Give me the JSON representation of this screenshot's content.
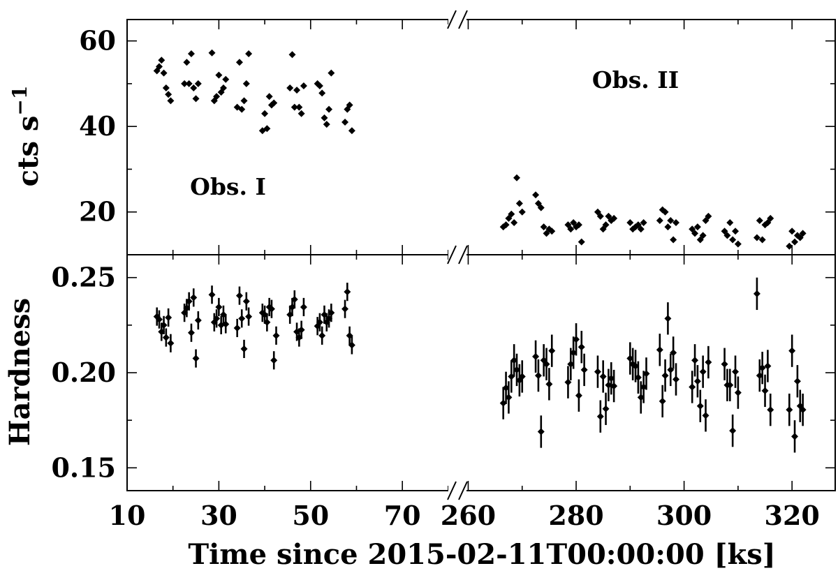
{
  "chart_data": {
    "type": "scatter",
    "xlabel": "Time since 2015-02-11T00:00:00 [ks]",
    "x_axis": {
      "broken": true,
      "segments": [
        {
          "range": [
            10,
            82
          ],
          "ticks": [
            10,
            30,
            50,
            70
          ]
        },
        {
          "range": [
            258,
            328
          ],
          "ticks": [
            260,
            280,
            300,
            320
          ]
        }
      ]
    },
    "panels": [
      {
        "id": "rate",
        "ylabel": "cts s",
        "ylabel_superscript": "−1",
        "ylim": [
          10,
          65
        ],
        "yticks": [
          20,
          40,
          60
        ],
        "annotations": [
          {
            "text": "Obs. I",
            "x": 32,
            "y": 24
          },
          {
            "text": "Obs. II",
            "x": 291,
            "y": 49
          }
        ],
        "series": [
          {
            "points": [
              [
                16.5,
                53
              ],
              [
                17,
                54
              ],
              [
                17.5,
                55.5
              ],
              [
                18,
                52.5
              ],
              [
                18.5,
                49
              ],
              [
                19,
                47.5
              ],
              [
                19.5,
                46
              ],
              [
                22.5,
                50
              ],
              [
                23,
                55
              ],
              [
                23.5,
                50
              ],
              [
                24,
                57
              ],
              [
                24.5,
                49
              ],
              [
                25,
                46.5
              ],
              [
                25.5,
                50
              ],
              [
                28.5,
                57.2
              ],
              [
                29,
                46
              ],
              [
                29.5,
                47
              ],
              [
                30,
                52
              ],
              [
                30.5,
                48
              ],
              [
                31,
                49
              ],
              [
                31.5,
                51
              ],
              [
                34,
                44.5
              ],
              [
                34.5,
                55
              ],
              [
                35,
                44
              ],
              [
                35.5,
                46
              ],
              [
                36,
                50
              ],
              [
                36.5,
                57
              ],
              [
                39.5,
                39
              ],
              [
                40,
                43
              ],
              [
                40.5,
                39.5
              ],
              [
                41,
                47
              ],
              [
                41.5,
                45
              ],
              [
                42,
                45.5
              ],
              [
                45.5,
                49
              ],
              [
                46,
                56.8
              ],
              [
                46.5,
                44.5
              ],
              [
                47,
                48.5
              ],
              [
                47.5,
                44.5
              ],
              [
                48,
                43
              ],
              [
                48.5,
                49.5
              ],
              [
                51.5,
                50
              ],
              [
                52,
                49.5
              ],
              [
                52.5,
                47.8
              ],
              [
                53,
                42
              ],
              [
                53.5,
                40.5
              ],
              [
                54,
                44
              ],
              [
                54.5,
                52.5
              ],
              [
                57.5,
                41
              ],
              [
                58,
                44
              ],
              [
                58.5,
                45
              ],
              [
                59,
                39
              ]
            ]
          },
          {
            "points": [
              [
                266.5,
                16.5
              ],
              [
                267,
                17
              ],
              [
                267.5,
                18.5
              ],
              [
                268,
                19.5
              ],
              [
                268.5,
                17.5
              ],
              [
                269,
                28
              ],
              [
                269.5,
                22
              ],
              [
                270,
                20
              ],
              [
                272.5,
                24
              ],
              [
                273,
                22
              ],
              [
                273.5,
                21
              ],
              [
                274,
                16.5
              ],
              [
                274.5,
                15
              ],
              [
                275,
                16
              ],
              [
                275.5,
                15.5
              ],
              [
                278.5,
                17
              ],
              [
                279,
                16
              ],
              [
                279.5,
                17.5
              ],
              [
                280,
                16.5
              ],
              [
                280.5,
                17
              ],
              [
                281,
                13
              ],
              [
                284,
                20
              ],
              [
                284.5,
                19
              ],
              [
                285,
                16
              ],
              [
                285.5,
                17
              ],
              [
                286,
                19
              ],
              [
                286.5,
                18
              ],
              [
                287,
                18.5
              ],
              [
                290,
                17.5
              ],
              [
                290.5,
                16
              ],
              [
                291,
                16.5
              ],
              [
                291.5,
                17
              ],
              [
                292,
                16
              ],
              [
                292.5,
                17.5
              ],
              [
                295.5,
                18
              ],
              [
                296,
                20.5
              ],
              [
                296.5,
                20
              ],
              [
                297,
                16.5
              ],
              [
                297.5,
                18
              ],
              [
                298,
                13.5
              ],
              [
                298.5,
                17.5
              ],
              [
                301.5,
                16
              ],
              [
                302,
                15
              ],
              [
                302.5,
                16.5
              ],
              [
                303,
                13.5
              ],
              [
                303.5,
                14.5
              ],
              [
                304,
                18
              ],
              [
                304.5,
                19
              ],
              [
                307.5,
                15.5
              ],
              [
                308,
                14.5
              ],
              [
                308.5,
                17.5
              ],
              [
                309,
                13.5
              ],
              [
                309.5,
                15.5
              ],
              [
                310,
                12.5
              ],
              [
                313.5,
                14
              ],
              [
                314,
                18
              ],
              [
                314.5,
                13.5
              ],
              [
                315,
                17
              ],
              [
                315.5,
                17.5
              ],
              [
                316,
                18.5
              ],
              [
                319.5,
                12
              ],
              [
                320,
                15.5
              ],
              [
                320.5,
                13
              ],
              [
                321,
                14.5
              ],
              [
                321.5,
                14
              ],
              [
                322,
                15
              ]
            ]
          }
        ]
      },
      {
        "id": "hardness",
        "ylabel": "Hardness",
        "ylim": [
          0.138,
          0.262
        ],
        "yticks": [
          0.15,
          0.2,
          0.25
        ],
        "ytick_labels": [
          "0.15",
          "0.20",
          "0.25"
        ],
        "series": [
          {
            "points": [
              [
                16.5,
                0.2295
              ],
              [
                17,
                0.228
              ],
              [
                17.5,
                0.2215
              ],
              [
                18,
                0.225
              ],
              [
                18.5,
                0.2185
              ],
              [
                19,
                0.229
              ],
              [
                19.5,
                0.2155
              ],
              [
                22.5,
                0.2315
              ],
              [
                23,
                0.234
              ],
              [
                23.5,
                0.2375
              ],
              [
                24,
                0.221
              ],
              [
                24.5,
                0.2395
              ],
              [
                25,
                0.2075
              ],
              [
                25.5,
                0.2275
              ],
              [
                28.5,
                0.241
              ],
              [
                29,
                0.2265
              ],
              [
                29.5,
                0.2285
              ],
              [
                30,
                0.2345
              ],
              [
                30.5,
                0.225
              ],
              [
                31,
                0.2305
              ],
              [
                31.5,
                0.2255
              ],
              [
                34,
                0.2235
              ],
              [
                34.5,
                0.2405
              ],
              [
                35,
                0.2285
              ],
              [
                35.5,
                0.2125
              ],
              [
                36,
                0.2375
              ],
              [
                36.5,
                0.2295
              ],
              [
                39.5,
                0.2315
              ],
              [
                40,
                0.2305
              ],
              [
                40.5,
                0.2265
              ],
              [
                41,
                0.2345
              ],
              [
                41.5,
                0.2335
              ],
              [
                42,
                0.2065
              ],
              [
                42.5,
                0.2195
              ],
              [
                45.5,
                0.2305
              ],
              [
                46,
                0.2345
              ],
              [
                46.5,
                0.2385
              ],
              [
                47,
                0.2215
              ],
              [
                47.5,
                0.2185
              ],
              [
                48,
                0.2225
              ],
              [
                48.5,
                0.2345
              ],
              [
                51.5,
                0.2245
              ],
              [
                52,
                0.2265
              ],
              [
                52.5,
                0.2195
              ],
              [
                53,
                0.2305
              ],
              [
                53.5,
                0.2265
              ],
              [
                54,
                0.2285
              ],
              [
                54.5,
                0.2315
              ],
              [
                57.5,
                0.2335
              ],
              [
                58,
                0.2425
              ],
              [
                58.5,
                0.2195
              ],
              [
                59,
                0.2145
              ]
            ],
            "err": 0.0048
          },
          {
            "points": [
              [
                266.5,
                0.184
              ],
              [
                267,
                0.192
              ],
              [
                267.5,
                0.187
              ],
              [
                268,
                0.198
              ],
              [
                268.5,
                0.2065
              ],
              [
                269,
                0.2015
              ],
              [
                269.5,
                0.196
              ],
              [
                270,
                0.198
              ],
              [
                272.5,
                0.2085
              ],
              [
                273,
                0.1985
              ],
              [
                273.5,
                0.169
              ],
              [
                274,
                0.2065
              ],
              [
                274.5,
                0.2045
              ],
              [
                275,
                0.194
              ],
              [
                275.5,
                0.2115
              ],
              [
                278.5,
                0.195
              ],
              [
                279,
                0.2045
              ],
              [
                279.5,
                0.2105
              ],
              [
                280,
                0.2175
              ],
              [
                280.5,
                0.188
              ],
              [
                281,
                0.2135
              ],
              [
                281.5,
                0.2015
              ],
              [
                284,
                0.2005
              ],
              [
                284.5,
                0.177
              ],
              [
                285,
                0.198
              ],
              [
                285.5,
                0.181
              ],
              [
                286,
                0.1935
              ],
              [
                286.5,
                0.197
              ],
              [
                287,
                0.193
              ],
              [
                290,
                0.2075
              ],
              [
                290.5,
                0.2045
              ],
              [
                291,
                0.2035
              ],
              [
                291.5,
                0.1975
              ],
              [
                292,
                0.187
              ],
              [
                292.5,
                0.1925
              ],
              [
                293,
                0.1995
              ],
              [
                295.5,
                0.212
              ],
              [
                296,
                0.185
              ],
              [
                296.5,
                0.1985
              ],
              [
                297,
                0.2285
              ],
              [
                297.5,
                0.2015
              ],
              [
                298,
                0.2105
              ],
              [
                298.5,
                0.1965
              ],
              [
                301.5,
                0.1925
              ],
              [
                302,
                0.2065
              ],
              [
                302.5,
                0.1955
              ],
              [
                303,
                0.1825
              ],
              [
                303.5,
                0.2005
              ],
              [
                304,
                0.1775
              ],
              [
                304.5,
                0.2055
              ],
              [
                307.5,
                0.2045
              ],
              [
                308,
                0.1935
              ],
              [
                308.5,
                0.1935
              ],
              [
                309,
                0.1695
              ],
              [
                309.5,
                0.2005
              ],
              [
                310,
                0.1895
              ],
              [
                313.5,
                0.2415
              ],
              [
                314,
                0.1985
              ],
              [
                314.5,
                0.2025
              ],
              [
                315,
                0.1905
              ],
              [
                315.5,
                0.2035
              ],
              [
                316,
                0.1805
              ],
              [
                319.5,
                0.1805
              ],
              [
                320,
                0.2115
              ],
              [
                320.5,
                0.1665
              ],
              [
                321,
                0.1955
              ],
              [
                321.5,
                0.1825
              ],
              [
                322,
                0.1805
              ]
            ],
            "err": 0.0085
          }
        ]
      }
    ]
  }
}
